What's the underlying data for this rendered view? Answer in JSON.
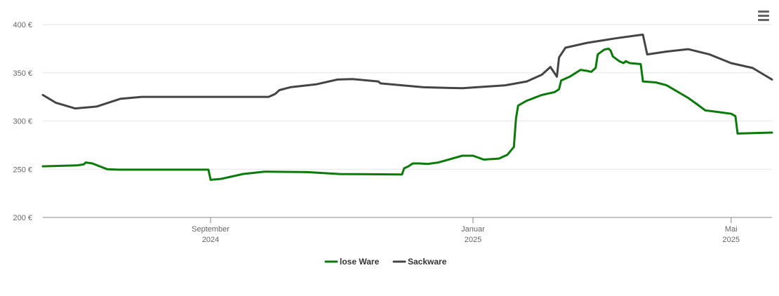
{
  "chart_data": {
    "type": "line",
    "currency_suffix": " €",
    "y_ticks": [
      200,
      250,
      300,
      350,
      400
    ],
    "ylim": [
      200,
      400
    ],
    "xlim": [
      "2024-06-15",
      "2025-05-20"
    ],
    "x_ticks": [
      {
        "date": "2024-09-01",
        "line1": "September",
        "line2": "2024"
      },
      {
        "date": "2025-01-01",
        "line1": "Januar",
        "line2": "2025"
      },
      {
        "date": "2025-05-01",
        "line1": "Mai",
        "line2": "2025"
      }
    ],
    "grid": true,
    "legend_position": "bottom-center",
    "series": [
      {
        "name": "lose Ware",
        "color": "#0a7a0a",
        "points": [
          [
            "2024-06-15",
            253
          ],
          [
            "2024-07-01",
            254
          ],
          [
            "2024-07-04",
            255
          ],
          [
            "2024-07-05",
            257
          ],
          [
            "2024-07-08",
            256
          ],
          [
            "2024-07-15",
            250
          ],
          [
            "2024-07-20",
            249.5
          ],
          [
            "2024-08-31",
            249.5
          ],
          [
            "2024-09-01",
            239
          ],
          [
            "2024-09-06",
            240
          ],
          [
            "2024-09-16",
            245
          ],
          [
            "2024-09-26",
            247.5
          ],
          [
            "2024-10-16",
            247
          ],
          [
            "2024-10-31",
            245
          ],
          [
            "2024-11-29",
            244.5
          ],
          [
            "2024-11-30",
            251
          ],
          [
            "2024-12-02",
            253
          ],
          [
            "2024-12-04",
            256
          ],
          [
            "2024-12-07",
            256
          ],
          [
            "2024-12-11",
            255.5
          ],
          [
            "2024-12-16",
            257
          ],
          [
            "2024-12-27",
            264
          ],
          [
            "2025-01-01",
            264
          ],
          [
            "2025-01-06",
            260
          ],
          [
            "2025-01-13",
            261
          ],
          [
            "2025-01-17",
            265
          ],
          [
            "2025-01-20",
            273
          ],
          [
            "2025-01-21",
            303
          ],
          [
            "2025-01-22",
            316
          ],
          [
            "2025-01-26",
            321
          ],
          [
            "2025-02-02",
            327
          ],
          [
            "2025-02-08",
            330
          ],
          [
            "2025-02-10",
            333
          ],
          [
            "2025-02-11",
            342
          ],
          [
            "2025-02-15",
            346
          ],
          [
            "2025-02-20",
            353
          ],
          [
            "2025-02-23",
            352
          ],
          [
            "2025-02-25",
            351
          ],
          [
            "2025-02-27",
            355
          ],
          [
            "2025-02-28",
            369
          ],
          [
            "2025-03-03",
            374
          ],
          [
            "2025-03-05",
            375
          ],
          [
            "2025-03-06",
            373
          ],
          [
            "2025-03-07",
            367
          ],
          [
            "2025-03-10",
            362
          ],
          [
            "2025-03-12",
            360
          ],
          [
            "2025-03-13",
            362
          ],
          [
            "2025-03-15",
            360
          ],
          [
            "2025-03-20",
            359
          ],
          [
            "2025-03-21",
            341
          ],
          [
            "2025-03-27",
            340
          ],
          [
            "2025-04-01",
            337
          ],
          [
            "2025-04-11",
            324
          ],
          [
            "2025-04-16",
            316
          ],
          [
            "2025-04-19",
            311
          ],
          [
            "2025-04-26",
            309
          ],
          [
            "2025-05-01",
            307.5
          ],
          [
            "2025-05-03",
            305
          ],
          [
            "2025-05-04",
            287
          ],
          [
            "2025-05-20",
            288
          ]
        ]
      },
      {
        "name": "Sackware",
        "color": "#444444",
        "points": [
          [
            "2024-06-15",
            327
          ],
          [
            "2024-06-21",
            319
          ],
          [
            "2024-06-30",
            313
          ],
          [
            "2024-07-10",
            315
          ],
          [
            "2024-07-21",
            323
          ],
          [
            "2024-07-31",
            325
          ],
          [
            "2024-08-31",
            325
          ],
          [
            "2024-09-03",
            325
          ],
          [
            "2024-09-28",
            325
          ],
          [
            "2024-10-01",
            328
          ],
          [
            "2024-10-03",
            332
          ],
          [
            "2024-10-08",
            335
          ],
          [
            "2024-10-20",
            338
          ],
          [
            "2024-10-30",
            343
          ],
          [
            "2024-11-06",
            343.5
          ],
          [
            "2024-11-18",
            341
          ],
          [
            "2024-11-19",
            339
          ],
          [
            "2024-12-09",
            335
          ],
          [
            "2024-12-27",
            334
          ],
          [
            "2025-01-16",
            337
          ],
          [
            "2025-01-26",
            341
          ],
          [
            "2025-02-02",
            348
          ],
          [
            "2025-02-06",
            356
          ],
          [
            "2025-02-09",
            346
          ],
          [
            "2025-02-10",
            366
          ],
          [
            "2025-02-13",
            376
          ],
          [
            "2025-02-23",
            381
          ],
          [
            "2025-03-09",
            386
          ],
          [
            "2025-03-19",
            389
          ],
          [
            "2025-03-21",
            389.5
          ],
          [
            "2025-03-23",
            369
          ],
          [
            "2025-04-01",
            372
          ],
          [
            "2025-04-11",
            374.5
          ],
          [
            "2025-04-21",
            369
          ],
          [
            "2025-05-01",
            360
          ],
          [
            "2025-05-11",
            355
          ],
          [
            "2025-05-20",
            343
          ]
        ]
      }
    ]
  }
}
